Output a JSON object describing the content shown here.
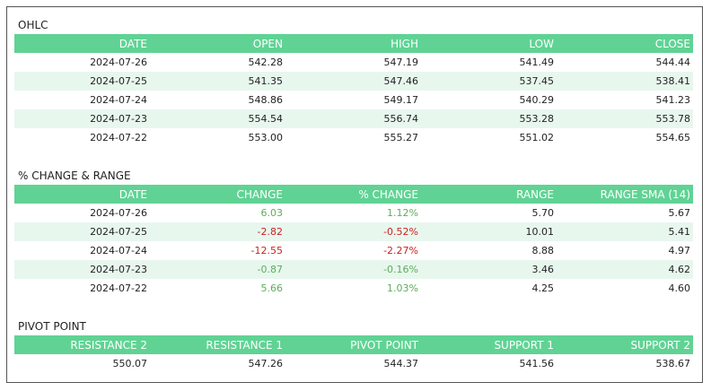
{
  "ohlc": {
    "title": "OHLC",
    "headers": [
      "DATE",
      "OPEN",
      "HIGH",
      "LOW",
      "CLOSE"
    ],
    "rows": [
      [
        "2024-07-26",
        "542.28",
        "547.19",
        "541.49",
        "544.44"
      ],
      [
        "2024-07-25",
        "541.35",
        "547.46",
        "537.45",
        "538.41"
      ],
      [
        "2024-07-24",
        "548.86",
        "549.17",
        "540.29",
        "541.23"
      ],
      [
        "2024-07-23",
        "554.54",
        "556.74",
        "553.28",
        "553.78"
      ],
      [
        "2024-07-22",
        "553.00",
        "555.27",
        "551.02",
        "554.65"
      ]
    ]
  },
  "change": {
    "title": "% CHANGE & RANGE",
    "headers": [
      "DATE",
      "CHANGE",
      "% CHANGE",
      "RANGE",
      "RANGE SMA (14)"
    ],
    "rows": [
      [
        "2024-07-26",
        "6.03",
        "1.12%",
        "5.70",
        "5.67"
      ],
      [
        "2024-07-25",
        "-2.82",
        "-0.52%",
        "10.01",
        "5.41"
      ],
      [
        "2024-07-24",
        "-12.55",
        "-2.27%",
        "8.88",
        "4.97"
      ],
      [
        "2024-07-23",
        "-0.87",
        "-0.16%",
        "3.46",
        "4.62"
      ],
      [
        "2024-07-22",
        "5.66",
        "1.03%",
        "4.25",
        "4.60"
      ]
    ]
  },
  "pivot": {
    "title": "PIVOT POINT",
    "headers": [
      "RESISTANCE 2",
      "RESISTANCE 1",
      "PIVOT POINT",
      "SUPPORT 1",
      "SUPPORT 2"
    ],
    "rows": [
      [
        "550.07",
        "547.26",
        "544.37",
        "541.56",
        "538.67"
      ]
    ]
  },
  "colors": {
    "header_bg": "#60d394",
    "alt_row_bg": "#e8f7ee",
    "positive": "#5bae5b",
    "negative": "#cc2222"
  }
}
